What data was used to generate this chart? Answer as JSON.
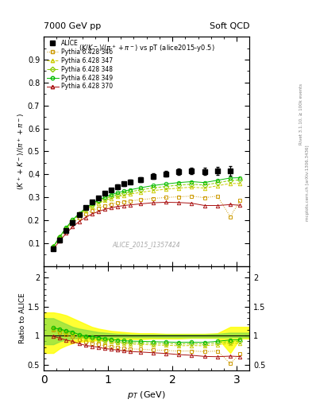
{
  "title_left": "7000 GeV pp",
  "title_right": "Soft QCD",
  "plot_title": "(K/K⁻)/(π⁺+π⁻) vs pT (alice2015-y0.5)",
  "ylabel_main": "(K⁺ + K⁻)/(π⁺ + π⁻)",
  "ylabel_ratio": "Ratio to ALICE",
  "xlabel": "p$_T$ (GeV)",
  "watermark": "ALICE_2015_I1357424",
  "ylim_main": [
    0.0,
    1.0
  ],
  "ylim_ratio": [
    0.4,
    2.2
  ],
  "xlim": [
    0.0,
    3.2
  ],
  "yticks_main": [
    0.1,
    0.2,
    0.3,
    0.4,
    0.5,
    0.6,
    0.7,
    0.8,
    0.9
  ],
  "yticks_ratio_left": [
    0.5,
    1.0,
    1.5,
    2.0
  ],
  "yticks_ratio_right": [
    0.5,
    1.0,
    1.5,
    2.0
  ],
  "alice_x": [
    0.15,
    0.25,
    0.35,
    0.45,
    0.55,
    0.65,
    0.75,
    0.85,
    0.95,
    1.05,
    1.15,
    1.25,
    1.35,
    1.5,
    1.7,
    1.9,
    2.1,
    2.3,
    2.5,
    2.7,
    2.9
  ],
  "alice_y": [
    0.075,
    0.115,
    0.155,
    0.19,
    0.225,
    0.255,
    0.278,
    0.298,
    0.318,
    0.332,
    0.347,
    0.358,
    0.368,
    0.378,
    0.392,
    0.402,
    0.412,
    0.415,
    0.412,
    0.415,
    0.415
  ],
  "alice_yerr": [
    0.005,
    0.006,
    0.006,
    0.006,
    0.006,
    0.007,
    0.007,
    0.007,
    0.008,
    0.008,
    0.009,
    0.009,
    0.01,
    0.01,
    0.011,
    0.012,
    0.013,
    0.015,
    0.016,
    0.018,
    0.02
  ],
  "p346_x": [
    0.15,
    0.25,
    0.35,
    0.45,
    0.55,
    0.65,
    0.75,
    0.85,
    0.95,
    1.05,
    1.15,
    1.25,
    1.35,
    1.5,
    1.7,
    1.9,
    2.1,
    2.3,
    2.5,
    2.7,
    2.9,
    3.05
  ],
  "p346_y": [
    0.082,
    0.122,
    0.157,
    0.187,
    0.21,
    0.228,
    0.242,
    0.253,
    0.262,
    0.27,
    0.276,
    0.281,
    0.284,
    0.289,
    0.295,
    0.299,
    0.302,
    0.305,
    0.298,
    0.305,
    0.215,
    0.285
  ],
  "p347_x": [
    0.15,
    0.25,
    0.35,
    0.45,
    0.55,
    0.65,
    0.75,
    0.85,
    0.95,
    1.05,
    1.15,
    1.25,
    1.35,
    1.5,
    1.7,
    1.9,
    2.1,
    2.3,
    2.5,
    2.7,
    2.9,
    3.05
  ],
  "p347_y": [
    0.084,
    0.126,
    0.164,
    0.196,
    0.222,
    0.243,
    0.26,
    0.274,
    0.285,
    0.295,
    0.303,
    0.309,
    0.314,
    0.321,
    0.329,
    0.335,
    0.34,
    0.344,
    0.34,
    0.35,
    0.36,
    0.36
  ],
  "p348_x": [
    0.15,
    0.25,
    0.35,
    0.45,
    0.55,
    0.65,
    0.75,
    0.85,
    0.95,
    1.05,
    1.15,
    1.25,
    1.35,
    1.5,
    1.7,
    1.9,
    2.1,
    2.3,
    2.5,
    2.7,
    2.9,
    3.05
  ],
  "p348_y": [
    0.084,
    0.127,
    0.166,
    0.199,
    0.226,
    0.248,
    0.267,
    0.282,
    0.293,
    0.304,
    0.312,
    0.319,
    0.324,
    0.332,
    0.341,
    0.347,
    0.353,
    0.357,
    0.353,
    0.363,
    0.373,
    0.375
  ],
  "p349_x": [
    0.15,
    0.25,
    0.35,
    0.45,
    0.55,
    0.65,
    0.75,
    0.85,
    0.95,
    1.05,
    1.15,
    1.25,
    1.35,
    1.5,
    1.7,
    1.9,
    2.1,
    2.3,
    2.5,
    2.7,
    2.9,
    3.05
  ],
  "p349_y": [
    0.085,
    0.128,
    0.168,
    0.202,
    0.229,
    0.252,
    0.272,
    0.288,
    0.3,
    0.311,
    0.32,
    0.327,
    0.333,
    0.341,
    0.351,
    0.358,
    0.364,
    0.368,
    0.364,
    0.374,
    0.384,
    0.385
  ],
  "p370_x": [
    0.15,
    0.25,
    0.35,
    0.45,
    0.55,
    0.65,
    0.75,
    0.85,
    0.95,
    1.05,
    1.15,
    1.25,
    1.35,
    1.5,
    1.7,
    1.9,
    2.1,
    2.3,
    2.5,
    2.7,
    2.9,
    3.05
  ],
  "p370_y": [
    0.074,
    0.11,
    0.143,
    0.171,
    0.194,
    0.212,
    0.227,
    0.238,
    0.247,
    0.254,
    0.26,
    0.264,
    0.267,
    0.271,
    0.276,
    0.278,
    0.277,
    0.274,
    0.264,
    0.264,
    0.268,
    0.265
  ],
  "color_346": "#cc9900",
  "color_347": "#cccc00",
  "color_348": "#88cc00",
  "color_349": "#00bb00",
  "color_370": "#aa1111",
  "color_alice": "#000000",
  "band_yellow_x": [
    0.0,
    0.15,
    0.25,
    0.35,
    0.45,
    0.55,
    0.65,
    0.75,
    0.85,
    0.95,
    1.05,
    1.15,
    1.25,
    1.35,
    1.5,
    1.7,
    1.9,
    2.1,
    2.3,
    2.5,
    2.7,
    2.9,
    3.05,
    3.2
  ],
  "band_yellow_lo": [
    0.7,
    0.7,
    0.78,
    0.83,
    0.87,
    0.89,
    0.9,
    0.91,
    0.92,
    0.93,
    0.93,
    0.94,
    0.94,
    0.94,
    0.94,
    0.95,
    0.95,
    0.95,
    0.96,
    0.96,
    0.96,
    0.7,
    0.95,
    0.95
  ],
  "band_yellow_hi": [
    1.4,
    1.4,
    1.38,
    1.35,
    1.3,
    1.25,
    1.2,
    1.15,
    1.12,
    1.1,
    1.08,
    1.07,
    1.06,
    1.05,
    1.04,
    1.04,
    1.03,
    1.03,
    1.03,
    1.03,
    1.04,
    1.15,
    1.15,
    1.15
  ],
  "band_green_x": [
    0.0,
    0.15,
    0.25,
    0.35,
    0.45,
    0.55,
    0.65,
    0.75,
    0.85,
    0.95,
    1.05,
    1.15,
    1.25,
    1.35,
    1.5,
    1.7,
    1.9,
    2.1,
    2.3,
    2.5,
    2.7,
    2.9,
    3.05,
    3.2
  ],
  "band_green_lo": [
    0.85,
    0.85,
    0.9,
    0.93,
    0.95,
    0.96,
    0.97,
    0.97,
    0.97,
    0.97,
    0.97,
    0.97,
    0.97,
    0.97,
    0.97,
    0.97,
    0.97,
    0.97,
    0.97,
    0.97,
    0.97,
    0.97,
    0.97,
    0.97
  ],
  "band_green_hi": [
    1.3,
    1.3,
    1.25,
    1.2,
    1.15,
    1.12,
    1.1,
    1.08,
    1.06,
    1.05,
    1.04,
    1.03,
    1.03,
    1.02,
    1.02,
    1.02,
    1.02,
    1.02,
    1.02,
    1.02,
    1.03,
    1.05,
    1.05,
    1.05
  ]
}
